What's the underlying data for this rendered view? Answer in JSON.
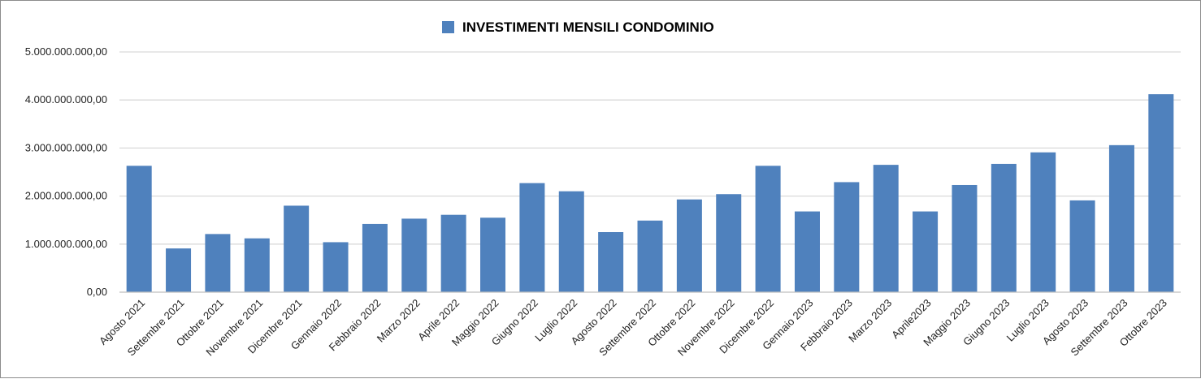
{
  "chart_data": {
    "type": "bar",
    "title": "INVESTIMENTI MENSILI CONDOMINIO",
    "legend": {
      "position": "top",
      "entries": [
        "INVESTIMENTI MENSILI CONDOMINIO"
      ]
    },
    "xlabel": "",
    "ylabel": "",
    "ylim": [
      0,
      5000000000
    ],
    "y_ticks": [
      0,
      1000000000,
      2000000000,
      3000000000,
      4000000000,
      5000000000
    ],
    "y_tick_labels": [
      "0,00",
      "1.000.000.000,00",
      "2.000.000.000,00",
      "3.000.000.000,00",
      "4.000.000.000,00",
      "5.000.000.000,00"
    ],
    "grid": true,
    "bar_color": "#4f81bd",
    "gridline_color": "#d9d9d9",
    "categories": [
      "Agosto 2021",
      "Settembre 2021",
      "Ottobre 2021",
      "Novembre 2021",
      "Dicembre 2021",
      "Gennaio 2022",
      "Febbraio 2022",
      "Marzo 2022",
      "Aprile 2022",
      "Maggio 2022",
      "Giugno 2022",
      "Luglio 2022",
      "Agosto 2022",
      "Settembre 2022",
      "Ottobre 2022",
      "Novembre 2022",
      "Dicembre 2022",
      "Gennaio 2023",
      "Febbraio 2023",
      "Marzo 2023",
      "Aprile2023",
      "Maggio 2023",
      "Giugno 2023",
      "Luglio 2023",
      "Agosto 2023",
      "Settembre 2023",
      "Ottobre 2023"
    ],
    "series": [
      {
        "name": "INVESTIMENTI MENSILI CONDOMINIO",
        "values": [
          2630000000,
          910000000,
          1210000000,
          1120000000,
          1800000000,
          1040000000,
          1420000000,
          1530000000,
          1610000000,
          1550000000,
          2270000000,
          2100000000,
          1250000000,
          1490000000,
          1930000000,
          2040000000,
          2630000000,
          1680000000,
          2290000000,
          2650000000,
          1680000000,
          2230000000,
          2670000000,
          2910000000,
          1910000000,
          3060000000,
          4120000000
        ]
      }
    ]
  }
}
